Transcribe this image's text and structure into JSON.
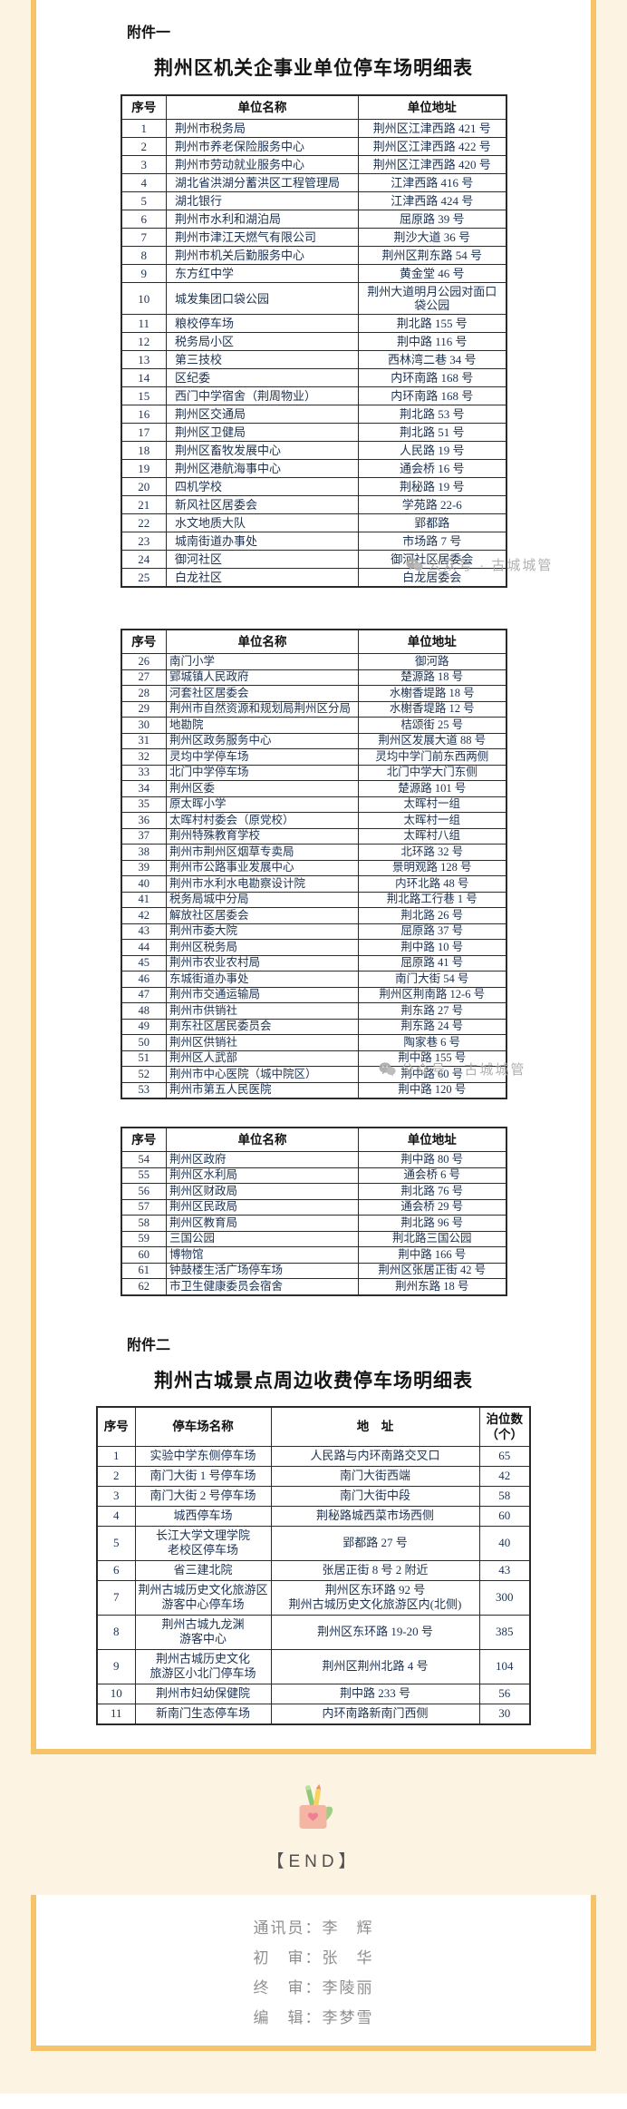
{
  "page": {
    "watermark_text": "公众号 · 古城城管",
    "end_label": "【END】"
  },
  "attachment1": {
    "label": "附件一",
    "title": "荆州区机关企事业单位停车场明细表",
    "columns": [
      "序号",
      "单位名称",
      "单位地址"
    ],
    "table1_rows": [
      [
        1,
        "荆州市税务局",
        "荆州区江津西路 421 号"
      ],
      [
        2,
        "荆州市养老保险服务中心",
        "荆州区江津西路 422 号"
      ],
      [
        3,
        "荆州市劳动就业服务中心",
        "荆州区江津西路 420 号"
      ],
      [
        4,
        "湖北省洪湖分蓄洪区工程管理局",
        "江津西路 416 号"
      ],
      [
        5,
        "湖北银行",
        "江津西路 424 号"
      ],
      [
        6,
        "荆州市水利和湖泊局",
        "屈原路 39 号"
      ],
      [
        7,
        "荆州市津江天燃气有限公司",
        "荆沙大道 36 号"
      ],
      [
        8,
        "荆州市机关后勤服务中心",
        "荆州区荆东路 54 号"
      ],
      [
        9,
        "东方红中学",
        "黄金堂 46 号"
      ],
      [
        10,
        "城发集团口袋公园",
        "荆州大道明月公园对面口袋公园"
      ],
      [
        11,
        "粮校停车场",
        "荆北路 155 号"
      ],
      [
        12,
        "税务局小区",
        "荆中路 116 号"
      ],
      [
        13,
        "第三技校",
        "西林湾二巷 34 号"
      ],
      [
        14,
        "区纪委",
        "内环南路 168 号"
      ],
      [
        15,
        "西门中学宿舍（荆周物业）",
        "内环南路 168 号"
      ],
      [
        16,
        "荆州区交通局",
        "荆北路 53 号"
      ],
      [
        17,
        "荆州区卫健局",
        "荆北路 51 号"
      ],
      [
        18,
        "荆州区畜牧发展中心",
        "人民路 19 号"
      ],
      [
        19,
        "荆州区港航海事中心",
        "通会桥 16 号"
      ],
      [
        20,
        "四机学校",
        "荆秘路 19 号"
      ],
      [
        21,
        "新风社区居委会",
        "学苑路 22-6"
      ],
      [
        22,
        "水文地质大队",
        "郢都路"
      ],
      [
        23,
        "城南街道办事处",
        "市场路 7 号"
      ],
      [
        24,
        "御河社区",
        "御河社区居委会"
      ],
      [
        25,
        "白龙社区",
        "白龙居委会"
      ]
    ],
    "table2_rows": [
      [
        26,
        "南门小学",
        "御河路"
      ],
      [
        27,
        "郢城镇人民政府",
        "楚源路 18 号"
      ],
      [
        28,
        "河套社区居委会",
        "水榭香堤路 18 号"
      ],
      [
        29,
        "荆州市自然资源和规划局荆州区分局",
        "水榭香堤路 12 号"
      ],
      [
        30,
        "地勘院",
        "桔颂街 25 号"
      ],
      [
        31,
        "荆州区政务服务中心",
        "荆州区发展大道 88 号"
      ],
      [
        32,
        "灵均中学停车场",
        "灵均中学门前东西两侧"
      ],
      [
        33,
        "北门中学停车场",
        "北门中学大门东侧"
      ],
      [
        34,
        "荆州区委",
        "楚源路 101 号"
      ],
      [
        35,
        "原太晖小学",
        "太晖村一组"
      ],
      [
        36,
        "太晖村村委会（原党校）",
        "太晖村一组"
      ],
      [
        37,
        "荆州特殊教育学校",
        "太晖村八组"
      ],
      [
        38,
        "荆州市荆州区烟草专卖局",
        "北环路 32 号"
      ],
      [
        39,
        "荆州市公路事业发展中心",
        "景明观路 128 号"
      ],
      [
        40,
        "荆州市水利水电勘察设计院",
        "内环北路 48 号"
      ],
      [
        41,
        "税务局城中分局",
        "荆北路工行巷 1 号"
      ],
      [
        42,
        "解放社区居委会",
        "荆北路 26 号"
      ],
      [
        43,
        "荆州市委大院",
        "屈原路 37 号"
      ],
      [
        44,
        "荆州区税务局",
        "荆中路 10 号"
      ],
      [
        45,
        "荆州市农业农村局",
        "屈原路 41 号"
      ],
      [
        46,
        "东城街道办事处",
        "南门大街 54 号"
      ],
      [
        47,
        "荆州市交通运输局",
        "荆州区荆南路 12-6 号"
      ],
      [
        48,
        "荆州市供销社",
        "荆东路 27 号"
      ],
      [
        49,
        "荆东社区居民委员会",
        "荆东路 24 号"
      ],
      [
        50,
        "荆州区供销社",
        "陶家巷 6 号"
      ],
      [
        51,
        "荆州区人武部",
        "荆中路 155 号"
      ],
      [
        52,
        "荆州市中心医院（城中院区）",
        "荆中路 60 号"
      ],
      [
        53,
        "荆州市第五人民医院",
        "荆中路 120 号"
      ]
    ],
    "table3_rows": [
      [
        54,
        "荆州区政府",
        "荆中路 80 号"
      ],
      [
        55,
        "荆州区水利局",
        "通会桥 6 号"
      ],
      [
        56,
        "荆州区财政局",
        "荆北路 76 号"
      ],
      [
        57,
        "荆州区民政局",
        "通会桥 29 号"
      ],
      [
        58,
        "荆州区教育局",
        "荆北路 96 号"
      ],
      [
        59,
        "三国公园",
        "荆北路三国公园"
      ],
      [
        60,
        "博物馆",
        "荆中路 166 号"
      ],
      [
        61,
        "钟鼓楼生活广场停车场",
        "荆州区张居正街 42 号"
      ],
      [
        62,
        "市卫生健康委员会宿舍",
        "荆州东路 18 号"
      ]
    ]
  },
  "attachment2": {
    "label": "附件二",
    "title": "荆州古城景点周边收费停车场明细表",
    "columns": [
      "序号",
      "停车场名称",
      "地　址",
      "泊位数（个）"
    ],
    "rows": [
      [
        1,
        "实验中学东侧停车场",
        "人民路与内环南路交叉口",
        65
      ],
      [
        2,
        "南门大街 1 号停车场",
        "南门大街西端",
        42
      ],
      [
        3,
        "南门大街 2 号停车场",
        "南门大街中段",
        58
      ],
      [
        4,
        "城西停车场",
        "荆秘路城西菜市场西侧",
        60
      ],
      [
        5,
        "长江大学文理学院\n老校区停车场",
        "郢都路 27 号",
        40
      ],
      [
        6,
        "省三建北院",
        "张居正街 8 号 2 附近",
        43
      ],
      [
        7,
        "荆州古城历史文化旅游区游客中心停车场",
        "荆州区东环路 92 号\n荆州古城历史文化旅游区内(北侧)",
        300
      ],
      [
        8,
        "荆州古城九龙渊\n游客中心",
        "荆州区东环路 19-20 号",
        385
      ],
      [
        9,
        "荆州古城历史文化\n旅游区小北门停车场",
        "荆州区荆州北路 4 号",
        104
      ],
      [
        10,
        "荆州市妇幼保健院",
        "荆中路 233 号",
        56
      ],
      [
        11,
        "新南门生态停车场",
        "内环南路新南门西侧",
        30
      ]
    ]
  },
  "credits": {
    "lines": [
      "通讯员：李　辉",
      "初　审：张　华",
      "终　审：李陵丽",
      "编　辑：李梦雪"
    ]
  },
  "colors": {
    "page_background": "#fdf3e2",
    "card_border": "#f6c368",
    "card_background": "#ffffff",
    "table_text": "#1d3251",
    "watermark_gray": "#a9a9a9"
  }
}
